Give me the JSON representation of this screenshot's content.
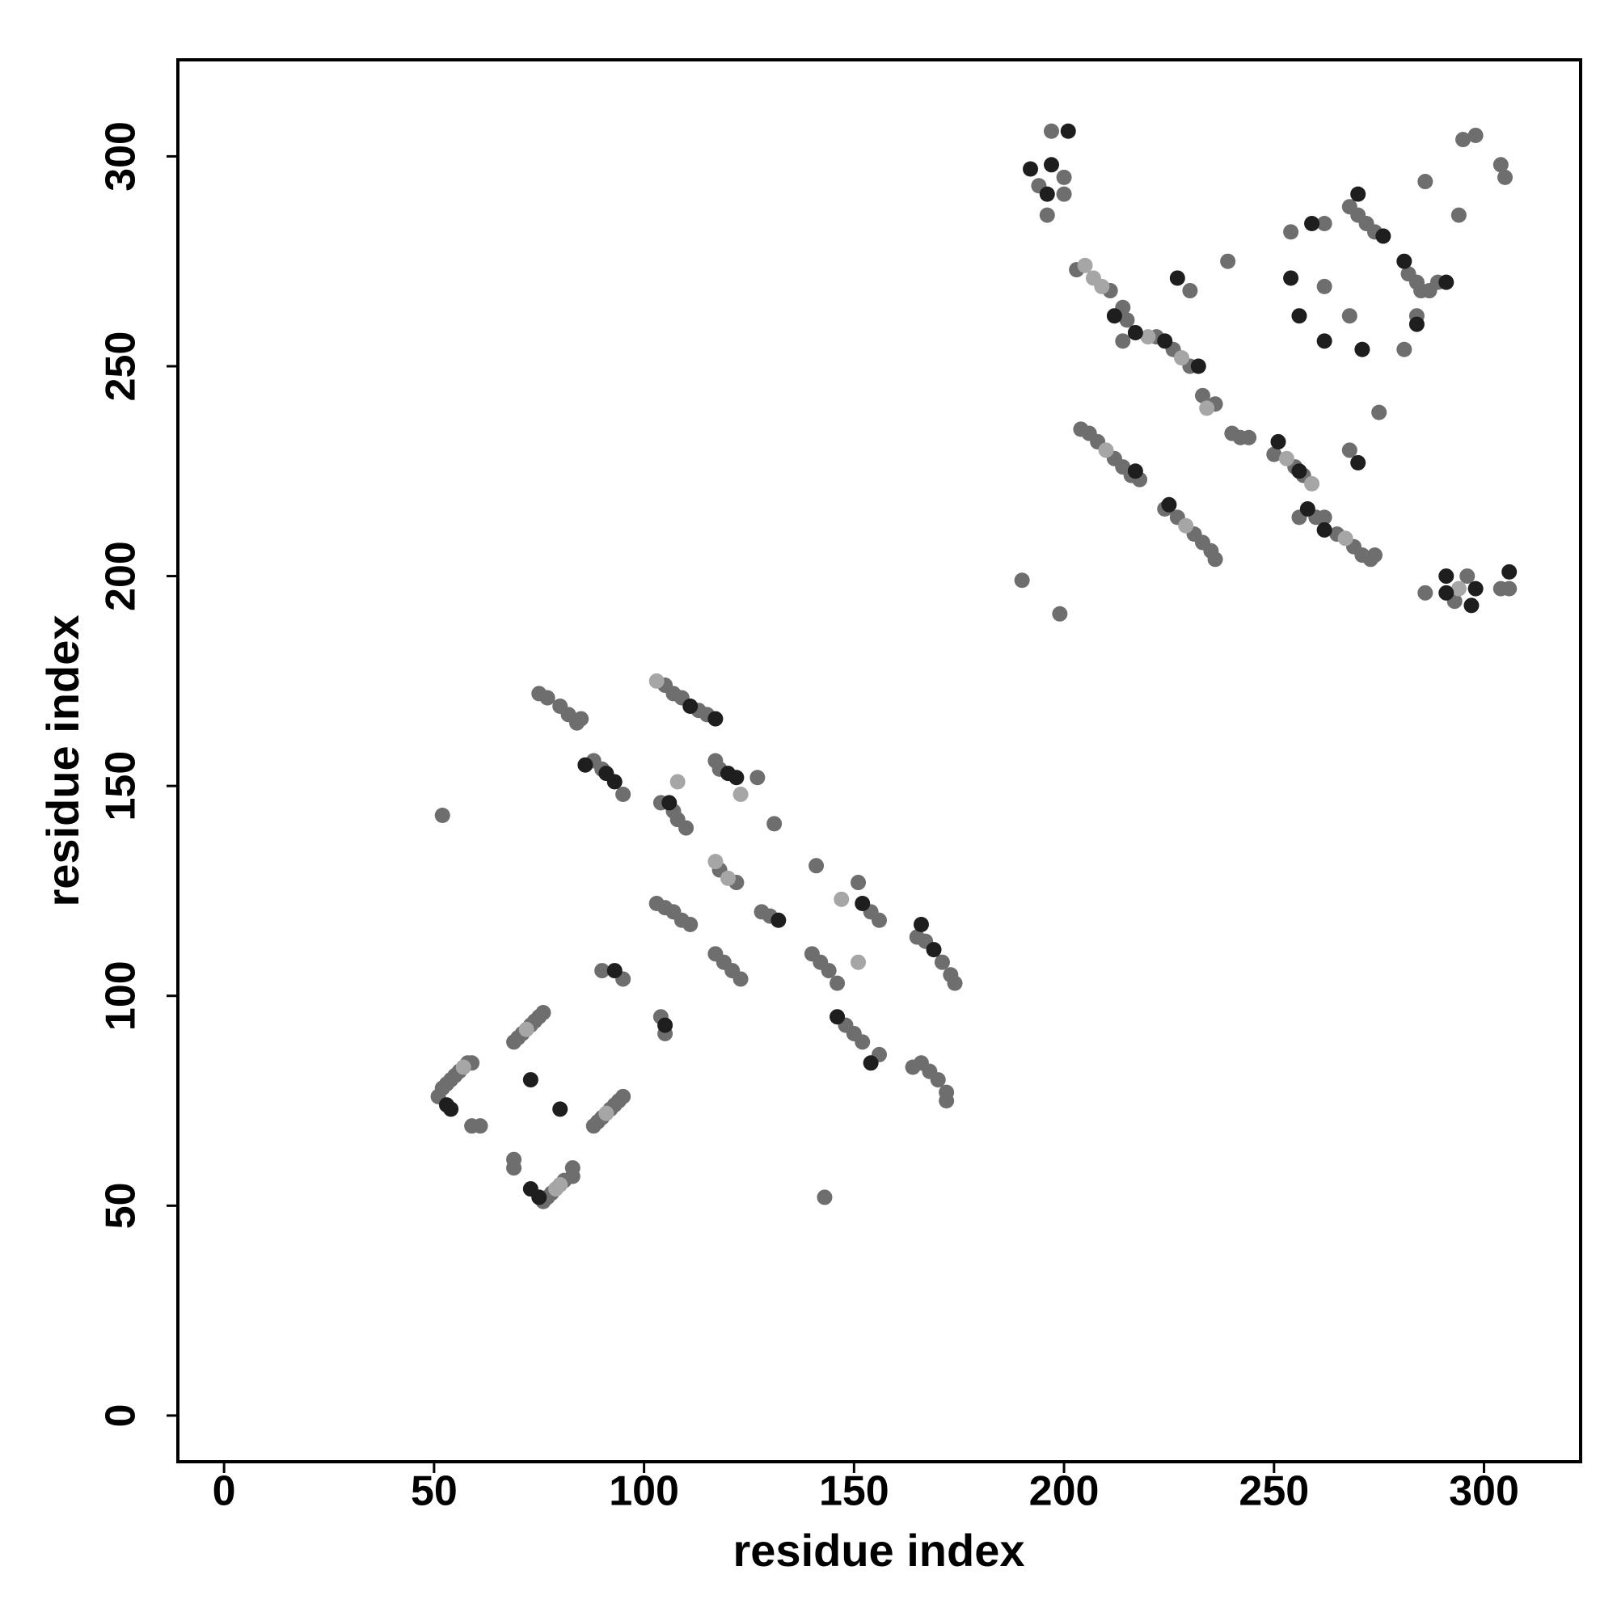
{
  "chart_data": {
    "type": "scatter",
    "x_label": "residue index",
    "y_label": "residue index",
    "xlim": [
      -11,
      323
    ],
    "ylim": [
      -11,
      323
    ],
    "xticks": [
      0,
      50,
      100,
      150,
      200,
      250,
      300
    ],
    "yticks": [
      0,
      50,
      100,
      150,
      200,
      250,
      300
    ],
    "grid": false,
    "series": [
      {
        "color": "#6e6e6e",
        "x": [
          51,
          52,
          53,
          54,
          55,
          56,
          58,
          59,
          59,
          61,
          69,
          70,
          71,
          73,
          74,
          75,
          76,
          69,
          69,
          76,
          77,
          78,
          81,
          83,
          83,
          88,
          89,
          90,
          92,
          93,
          94,
          95,
          90,
          95,
          104,
          105,
          52,
          75,
          77,
          80,
          82,
          84,
          85,
          88,
          90,
          95,
          105,
          107,
          109,
          113,
          115,
          104,
          107,
          108,
          110,
          117,
          118,
          127,
          103,
          105,
          107,
          109,
          111,
          118,
          122,
          117,
          119,
          121,
          123,
          128,
          130,
          131,
          141,
          140,
          142,
          144,
          146,
          148,
          150,
          152,
          156,
          151,
          154,
          156,
          165,
          167,
          171,
          173,
          174,
          164,
          166,
          168,
          170,
          172,
          172,
          143,
          190,
          199,
          194,
          197,
          196,
          200,
          200,
          203,
          211,
          214,
          215,
          214,
          222,
          226,
          230,
          230,
          233,
          236,
          239,
          240,
          242,
          244,
          204,
          206,
          208,
          212,
          214,
          216,
          218,
          224,
          227,
          231,
          233,
          235,
          236,
          250,
          255,
          257,
          256,
          260,
          262,
          265,
          269,
          271,
          273,
          274,
          262,
          268,
          254,
          262,
          268,
          275,
          268,
          270,
          272,
          274,
          282,
          284,
          285,
          287,
          289,
          281,
          284,
          286,
          294,
          295,
          298,
          304,
          305,
          286,
          293,
          296,
          304,
          306
        ],
        "values": [
          76,
          78,
          79,
          80,
          81,
          82,
          84,
          84,
          69,
          69,
          89,
          90,
          91,
          93,
          94,
          95,
          96,
          61,
          59,
          51,
          52,
          53,
          56,
          57,
          59,
          69,
          70,
          71,
          73,
          74,
          75,
          76,
          106,
          104,
          95,
          91,
          143,
          172,
          171,
          169,
          167,
          165,
          166,
          156,
          154,
          148,
          174,
          172,
          171,
          168,
          167,
          146,
          144,
          142,
          140,
          156,
          154,
          152,
          122,
          121,
          120,
          118,
          117,
          130,
          127,
          110,
          108,
          106,
          104,
          120,
          119,
          141,
          131,
          110,
          108,
          106,
          103,
          93,
          91,
          89,
          86,
          127,
          120,
          118,
          114,
          113,
          108,
          105,
          103,
          83,
          84,
          82,
          80,
          77,
          75,
          52,
          199,
          191,
          293,
          306,
          286,
          291,
          295,
          273,
          268,
          264,
          261,
          256,
          257,
          254,
          250,
          268,
          243,
          241,
          275,
          234,
          233,
          233,
          235,
          234,
          232,
          228,
          226,
          224,
          223,
          216,
          214,
          210,
          208,
          206,
          204,
          229,
          226,
          224,
          214,
          214,
          214,
          210,
          207,
          205,
          204,
          205,
          269,
          262,
          282,
          284,
          230,
          239,
          288,
          286,
          284,
          282,
          272,
          270,
          268,
          268,
          270,
          254,
          262,
          294,
          286,
          304,
          305,
          298,
          295,
          196,
          194,
          200,
          197,
          197
        ]
      },
      {
        "color": "#a6a6a6",
        "x": [
          108,
          123,
          147,
          151,
          103,
          117,
          120,
          205,
          207,
          220,
          253,
          259,
          267,
          234,
          209,
          228,
          210,
          229,
          80,
          79,
          57,
          72,
          91,
          294
        ],
        "values": [
          151,
          148,
          123,
          108,
          175,
          132,
          128,
          274,
          271,
          257,
          228,
          222,
          209,
          240,
          269,
          252,
          230,
          212,
          55,
          54,
          83,
          92,
          72,
          197
        ]
      },
      {
        "color": "#1e1e1e",
        "x": [
          53,
          54,
          73,
          80,
          73,
          75,
          93,
          105,
          86,
          91,
          93,
          111,
          117,
          106,
          120,
          122,
          132,
          146,
          154,
          152,
          166,
          169,
          192,
          196,
          197,
          201,
          212,
          217,
          224,
          232,
          227,
          217,
          225,
          251,
          256,
          258,
          262,
          254,
          256,
          262,
          271,
          259,
          270,
          270,
          276,
          281,
          291,
          284,
          291,
          291,
          297,
          298,
          306
        ],
        "values": [
          74,
          73,
          80,
          73,
          54,
          52,
          106,
          93,
          155,
          153,
          151,
          169,
          166,
          146,
          153,
          152,
          118,
          95,
          84,
          122,
          117,
          111,
          297,
          291,
          298,
          306,
          262,
          258,
          256,
          250,
          271,
          225,
          217,
          232,
          225,
          216,
          211,
          271,
          262,
          256,
          254,
          284,
          227,
          291,
          281,
          275,
          270,
          260,
          200,
          196,
          193,
          197,
          201
        ]
      }
    ]
  }
}
